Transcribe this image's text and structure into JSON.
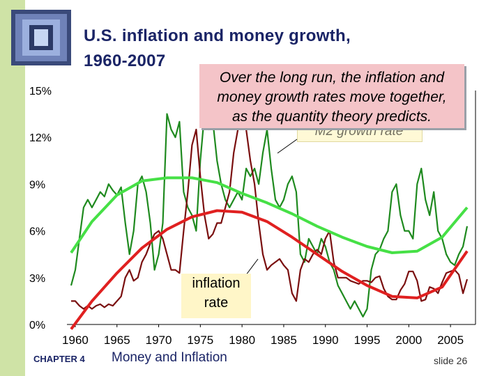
{
  "title_line1": "U.S. inflation and money growth,",
  "title_line2": "1960-2007",
  "callout": {
    "line1": "Over the long run, the inflation and",
    "line2": "money growth rates move together,",
    "line3": "as the quantity theory predicts."
  },
  "m2_label": "M2 growth rate",
  "inflation_label_line1": "inflation",
  "inflation_label_line2": "rate",
  "footer": {
    "chapter": "CHAPTER 4",
    "title": "Money and Inflation",
    "slide": "slide 26"
  },
  "colors": {
    "m2": "#1f8a1f",
    "inflation": "#7a0f0f",
    "m2_trend": "#46e046",
    "inflation_trend": "#e02020",
    "title": "#1a2466",
    "sidebar": "#cfe3a6",
    "callout_bg": "#f4c4c8"
  },
  "chart_data": {
    "type": "line",
    "title": "U.S. inflation and money growth, 1960-2007",
    "xlim": [
      1959,
      2008
    ],
    "ylim": [
      0,
      15
    ],
    "y_ticks": [
      0,
      3,
      6,
      9,
      12,
      15
    ],
    "y_tick_labels": [
      "0%",
      "3%",
      "6%",
      "9%",
      "12%",
      "15%"
    ],
    "x_ticks": [
      1960,
      1965,
      1970,
      1975,
      1980,
      1985,
      1990,
      1995,
      2000,
      2005
    ],
    "grid": false,
    "series": [
      {
        "name": "M2 growth rate",
        "x": [
          1959.5,
          1960,
          1960.5,
          1961,
          1961.5,
          1962,
          1962.5,
          1963,
          1963.5,
          1964,
          1964.5,
          1965,
          1965.5,
          1966,
          1966.5,
          1967,
          1967.5,
          1968,
          1968.5,
          1969,
          1969.5,
          1970,
          1970.5,
          1971,
          1971.5,
          1972,
          1972.5,
          1973,
          1973.5,
          1974,
          1974.5,
          1975,
          1975.5,
          1976,
          1976.5,
          1977,
          1977.5,
          1978,
          1978.5,
          1979,
          1979.5,
          1980,
          1980.5,
          1981,
          1981.5,
          1982,
          1982.5,
          1983,
          1983.5,
          1984,
          1984.5,
          1985,
          1985.5,
          1986,
          1986.5,
          1987,
          1987.5,
          1988,
          1988.5,
          1989,
          1989.5,
          1990,
          1990.5,
          1991,
          1991.5,
          1992,
          1992.5,
          1993,
          1993.5,
          1994,
          1994.5,
          1995,
          1995.5,
          1996,
          1996.5,
          1997,
          1997.5,
          1998,
          1998.5,
          1999,
          1999.5,
          2000,
          2000.5,
          2001,
          2001.5,
          2002,
          2002.5,
          2003,
          2003.5,
          2004,
          2004.5,
          2005,
          2005.5,
          2006,
          2006.5,
          2007
        ],
        "values": [
          2.5,
          3.5,
          5.5,
          7.5,
          8.0,
          7.5,
          8.0,
          8.5,
          8.2,
          9.0,
          8.6,
          8.3,
          8.8,
          6.5,
          4.5,
          6.0,
          9.0,
          9.5,
          8.5,
          6.5,
          3.5,
          4.5,
          6.5,
          13.5,
          12.5,
          12.0,
          13.0,
          8.5,
          7.5,
          7.0,
          6.0,
          10.5,
          13.5,
          12.5,
          13.0,
          10.5,
          9.0,
          8.0,
          7.5,
          8.0,
          8.5,
          8.0,
          10.0,
          9.5,
          10.0,
          9.0,
          11.0,
          12.5,
          10.0,
          8.0,
          7.5,
          8.0,
          9.0,
          9.5,
          8.5,
          4.5,
          4.0,
          5.5,
          5.0,
          4.5,
          5.5,
          5.0,
          4.0,
          3.5,
          2.5,
          2.0,
          1.5,
          1.0,
          1.5,
          1.0,
          0.5,
          1.0,
          3.5,
          4.5,
          4.8,
          5.5,
          6.0,
          8.5,
          9.0,
          7.0,
          6.0,
          6.0,
          5.5,
          9.0,
          10.0,
          8.0,
          7.0,
          8.5,
          6.0,
          5.5,
          4.5,
          4.0,
          3.8,
          4.5,
          5.0,
          6.3
        ]
      },
      {
        "name": "inflation rate",
        "x": [
          1959.5,
          1960,
          1960.5,
          1961,
          1961.5,
          1962,
          1962.5,
          1963,
          1963.5,
          1964,
          1964.5,
          1965,
          1965.5,
          1966,
          1966.5,
          1967,
          1967.5,
          1968,
          1968.5,
          1969,
          1969.5,
          1970,
          1970.5,
          1971,
          1971.5,
          1972,
          1972.5,
          1973,
          1973.5,
          1974,
          1974.5,
          1975,
          1975.5,
          1976,
          1976.5,
          1977,
          1977.5,
          1978,
          1978.5,
          1979,
          1979.5,
          1980,
          1980.5,
          1981,
          1981.5,
          1982,
          1982.5,
          1983,
          1983.5,
          1984,
          1984.5,
          1985,
          1985.5,
          1986,
          1986.5,
          1987,
          1987.5,
          1988,
          1988.5,
          1989,
          1989.5,
          1990,
          1990.5,
          1991,
          1991.5,
          1992,
          1992.5,
          1993,
          1993.5,
          1994,
          1994.5,
          1995,
          1995.5,
          1996,
          1996.5,
          1997,
          1997.5,
          1998,
          1998.5,
          1999,
          1999.5,
          2000,
          2000.5,
          2001,
          2001.5,
          2002,
          2002.5,
          2003,
          2003.5,
          2004,
          2004.5,
          2005,
          2005.5,
          2006,
          2006.5,
          2007
        ],
        "values": [
          1.5,
          1.5,
          1.2,
          1.0,
          1.2,
          1.0,
          1.2,
          1.3,
          1.1,
          1.3,
          1.2,
          1.5,
          1.8,
          3.0,
          3.5,
          2.8,
          3.0,
          4.0,
          4.5,
          5.2,
          5.8,
          6.0,
          5.5,
          4.5,
          3.5,
          3.5,
          3.3,
          6.0,
          8.5,
          11.5,
          12.5,
          9.5,
          7.0,
          5.5,
          5.8,
          6.5,
          6.5,
          7.5,
          8.5,
          11.0,
          12.5,
          13.5,
          12.5,
          10.5,
          9.0,
          6.5,
          4.5,
          3.5,
          3.8,
          4.0,
          4.2,
          3.8,
          3.5,
          2.0,
          1.5,
          3.5,
          4.2,
          4.0,
          4.5,
          4.8,
          4.5,
          5.5,
          6.0,
          4.0,
          3.0,
          3.0,
          3.0,
          2.8,
          2.7,
          2.6,
          2.8,
          2.8,
          2.7,
          3.0,
          3.1,
          2.3,
          1.8,
          1.6,
          1.6,
          2.2,
          2.6,
          3.4,
          3.4,
          2.8,
          1.5,
          1.6,
          2.4,
          2.3,
          2.0,
          2.7,
          3.3,
          3.4,
          3.5,
          3.2,
          2.0,
          2.9
        ]
      },
      {
        "name": "M2 growth trend",
        "x": [
          1959.5,
          1962,
          1965,
          1968,
          1971,
          1974,
          1977,
          1980,
          1983,
          1986,
          1989,
          1992,
          1995,
          1998,
          2001,
          2004,
          2007
        ],
        "values": [
          4.6,
          6.6,
          8.3,
          9.2,
          9.4,
          9.4,
          9.1,
          8.4,
          7.8,
          7.1,
          6.3,
          5.6,
          5.0,
          4.6,
          4.7,
          5.6,
          7.5
        ]
      },
      {
        "name": "inflation trend",
        "x": [
          1959.5,
          1962,
          1965,
          1968,
          1971,
          1974,
          1977,
          1980,
          1983,
          1986,
          1989,
          1992,
          1995,
          1998,
          2001,
          2004,
          2007
        ],
        "values": [
          -0.3,
          1.5,
          3.3,
          4.9,
          6.1,
          6.9,
          7.3,
          7.2,
          6.6,
          5.6,
          4.5,
          3.4,
          2.5,
          1.8,
          1.7,
          2.4,
          4.7
        ]
      }
    ]
  }
}
